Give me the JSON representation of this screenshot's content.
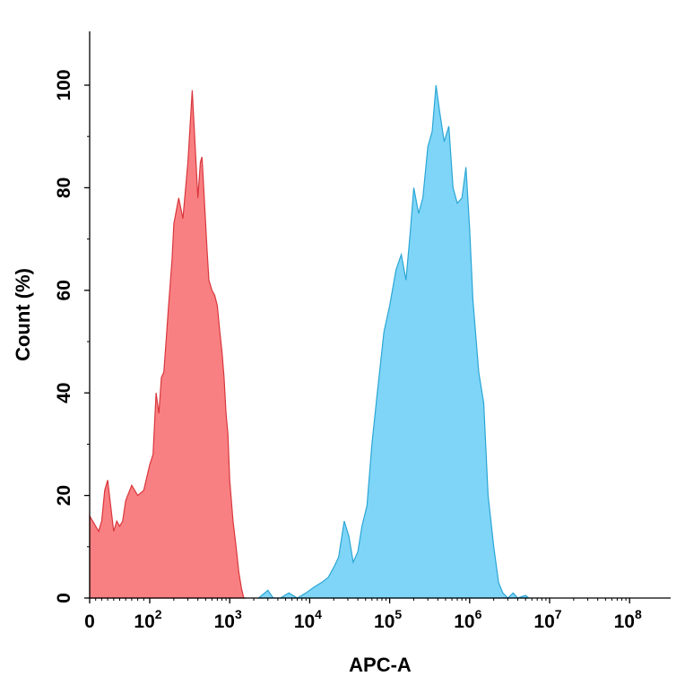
{
  "chart_data": {
    "type": "area",
    "xlabel": "APC-A",
    "ylabel": "Count (%)",
    "x_scale": "biexponential",
    "xlim": [
      0,
      100000000
    ],
    "ylim": [
      0,
      110
    ],
    "x_ticks": [
      {
        "value": 0,
        "base": "0",
        "exp": ""
      },
      {
        "value": 100,
        "base": "10",
        "exp": "2"
      },
      {
        "value": 1000,
        "base": "10",
        "exp": "3"
      },
      {
        "value": 10000,
        "base": "10",
        "exp": "4"
      },
      {
        "value": 100000,
        "base": "10",
        "exp": "5"
      },
      {
        "value": 1000000,
        "base": "10",
        "exp": "6"
      },
      {
        "value": 10000000,
        "base": "10",
        "exp": "7"
      },
      {
        "value": 100000000,
        "base": "10",
        "exp": "8"
      }
    ],
    "y_ticks": [
      "0",
      "20",
      "40",
      "60",
      "80",
      "100"
    ],
    "grid": false,
    "series": [
      {
        "fill": "#f98082",
        "stroke": "#d9363c",
        "x": [
          0,
          15,
          20,
          25,
          30,
          36,
          40,
          45,
          50,
          55,
          60,
          70,
          80,
          90,
          100,
          110,
          120,
          130,
          140,
          150,
          160,
          170,
          190,
          200,
          230,
          260,
          300,
          340,
          370,
          400,
          430,
          450,
          480,
          520,
          550,
          600,
          650,
          700,
          750,
          800,
          850,
          900,
          950,
          1000,
          1100,
          1200,
          1300,
          1400,
          1500,
          1600
        ],
        "y": [
          16,
          13,
          15,
          21,
          23,
          17,
          13,
          15,
          14,
          15,
          19,
          22,
          20,
          21,
          26,
          28,
          40,
          36,
          43,
          44,
          50,
          56,
          66,
          73,
          78,
          74,
          85,
          99,
          88,
          78,
          85,
          86,
          78,
          68,
          62,
          60,
          59,
          57,
          52,
          48,
          43,
          36,
          32,
          23,
          15,
          10,
          5,
          2,
          0,
          0
        ]
      },
      {
        "fill": "#7fd5f7",
        "stroke": "#2ba6d5",
        "x": [
          2300,
          3000,
          3500,
          4300,
          5500,
          7000,
          9000,
          11000,
          14000,
          17000,
          20000,
          23000,
          27000,
          31000,
          35000,
          40000,
          45000,
          52000,
          60000,
          70000,
          85000,
          100000,
          120000,
          140000,
          160000,
          180000,
          200000,
          230000,
          260000,
          300000,
          340000,
          380000,
          420000,
          480000,
          550000,
          620000,
          700000,
          800000,
          900000,
          1000000,
          1100000,
          1300000,
          1500000,
          1700000,
          2000000,
          2300000,
          2600000,
          3000000,
          3500000,
          4000000,
          5000000,
          5500000
        ],
        "y": [
          0,
          1.5,
          0,
          0,
          1,
          0,
          1,
          2,
          3,
          4,
          6,
          8,
          15,
          12,
          7,
          9,
          14,
          18,
          30,
          40,
          52,
          57,
          64,
          67,
          62,
          71,
          80,
          75,
          78,
          88,
          91,
          100,
          95,
          89,
          92,
          80,
          77,
          78,
          84,
          72,
          58,
          44,
          38,
          20,
          10,
          3,
          1,
          0,
          1,
          0,
          0.5,
          0
        ]
      }
    ]
  }
}
